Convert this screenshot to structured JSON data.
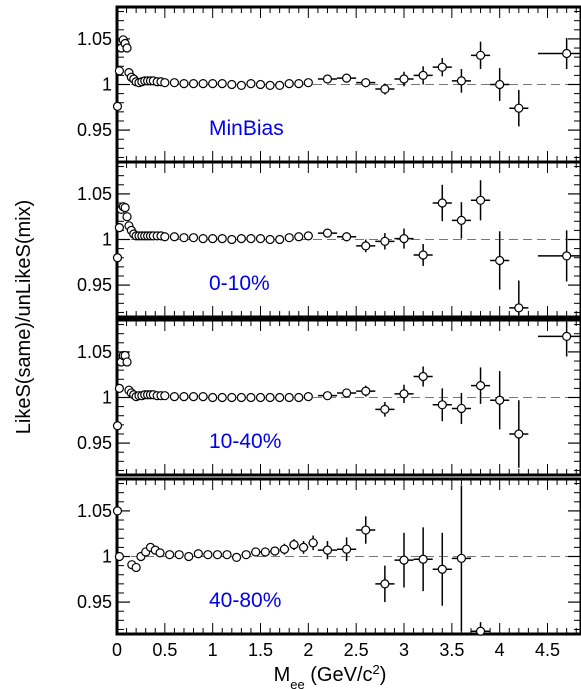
{
  "chart_data": {
    "type": "scatter",
    "ylabel": "LikeS(same)/unLikeS(mix)",
    "xlabel_main": "M",
    "xlabel_sub": "ee",
    "xlabel_unit_pre": " (GeV/c",
    "xlabel_unit_sup": "2",
    "xlabel_unit_post": ")",
    "xlim": [
      0,
      4.85
    ],
    "ylim": [
      0.915,
      1.085
    ],
    "x_ticks": [
      0,
      0.5,
      1,
      1.5,
      2,
      2.5,
      3,
      3.5,
      4,
      4.5
    ],
    "x_tick_labels": [
      "0",
      "0.5",
      "1",
      "1.5",
      "2",
      "2.5",
      "3",
      "3.5",
      "4",
      "4.5"
    ],
    "y_ticks": [
      0.95,
      1,
      1.05
    ],
    "y_tick_labels": [
      "0.95",
      "1",
      "1.05"
    ],
    "reference_line": 1,
    "marker": "open-circle",
    "panels": [
      {
        "label": "MinBias",
        "label_color": "#0000ee",
        "points": [
          {
            "x": 0.005,
            "y": 0.976
          },
          {
            "x": 0.025,
            "y": 1.015
          },
          {
            "x": 0.045,
            "y": 1.04
          },
          {
            "x": 0.065,
            "y": 1.049
          },
          {
            "x": 0.085,
            "y": 1.045
          },
          {
            "x": 0.105,
            "y": 1.04
          },
          {
            "x": 0.125,
            "y": 1.013
          },
          {
            "x": 0.15,
            "y": 1.008
          },
          {
            "x": 0.175,
            "y": 1.006
          },
          {
            "x": 0.2,
            "y": 1.003
          },
          {
            "x": 0.23,
            "y": 1.002
          },
          {
            "x": 0.26,
            "y": 1.003
          },
          {
            "x": 0.29,
            "y": 1.004
          },
          {
            "x": 0.32,
            "y": 1.004
          },
          {
            "x": 0.35,
            "y": 1.004
          },
          {
            "x": 0.38,
            "y": 1.004
          },
          {
            "x": 0.42,
            "y": 1.003
          },
          {
            "x": 0.46,
            "y": 1.003
          },
          {
            "x": 0.5,
            "y": 1.002
          },
          {
            "x": 0.6,
            "y": 1.002
          },
          {
            "x": 0.7,
            "y": 1.001
          },
          {
            "x": 0.8,
            "y": 1.001
          },
          {
            "x": 0.9,
            "y": 1.001
          },
          {
            "x": 1.0,
            "y": 1.001
          },
          {
            "x": 1.1,
            "y": 1.001
          },
          {
            "x": 1.2,
            "y": 1.0
          },
          {
            "x": 1.3,
            "y": 0.999
          },
          {
            "x": 1.4,
            "y": 1.001
          },
          {
            "x": 1.5,
            "y": 1.0
          },
          {
            "x": 1.6,
            "y": 0.999
          },
          {
            "x": 1.7,
            "y": 0.999
          },
          {
            "x": 1.8,
            "y": 1.001
          },
          {
            "x": 1.9,
            "y": 1.001
          },
          {
            "x": 2.0,
            "y": 1.002
          },
          {
            "x": 2.2,
            "y": 1.006,
            "ex": 0.1,
            "ey": 0.003
          },
          {
            "x": 2.4,
            "y": 1.007,
            "ex": 0.1,
            "ey": 0.004
          },
          {
            "x": 2.6,
            "y": 1.002,
            "ex": 0.1,
            "ey": 0.005
          },
          {
            "x": 2.8,
            "y": 0.995,
            "ex": 0.1,
            "ey": 0.006
          },
          {
            "x": 3.0,
            "y": 1.006,
            "ex": 0.1,
            "ey": 0.008
          },
          {
            "x": 3.2,
            "y": 1.01,
            "ex": 0.1,
            "ey": 0.01
          },
          {
            "x": 3.4,
            "y": 1.019,
            "ex": 0.1,
            "ey": 0.01
          },
          {
            "x": 3.6,
            "y": 1.004,
            "ex": 0.1,
            "ey": 0.013
          },
          {
            "x": 3.8,
            "y": 1.032,
            "ex": 0.1,
            "ey": 0.015
          },
          {
            "x": 4.0,
            "y": 1.0,
            "ex": 0.1,
            "ey": 0.018
          },
          {
            "x": 4.2,
            "y": 0.974,
            "ex": 0.1,
            "ey": 0.02
          },
          {
            "x": 4.7,
            "y": 1.034,
            "ex": 0.3,
            "ey": 0.017
          }
        ]
      },
      {
        "label": "0-10%",
        "label_color": "#0000ee",
        "points": [
          {
            "x": 0.005,
            "y": 0.98
          },
          {
            "x": 0.025,
            "y": 1.013
          },
          {
            "x": 0.045,
            "y": 1.033
          },
          {
            "x": 0.065,
            "y": 1.036
          },
          {
            "x": 0.085,
            "y": 1.035
          },
          {
            "x": 0.105,
            "y": 1.025
          },
          {
            "x": 0.125,
            "y": 1.015
          },
          {
            "x": 0.15,
            "y": 1.01
          },
          {
            "x": 0.175,
            "y": 1.006
          },
          {
            "x": 0.2,
            "y": 1.004
          },
          {
            "x": 0.23,
            "y": 1.004
          },
          {
            "x": 0.26,
            "y": 1.004
          },
          {
            "x": 0.29,
            "y": 1.004
          },
          {
            "x": 0.32,
            "y": 1.004
          },
          {
            "x": 0.35,
            "y": 1.004
          },
          {
            "x": 0.38,
            "y": 1.004
          },
          {
            "x": 0.42,
            "y": 1.004
          },
          {
            "x": 0.46,
            "y": 1.004
          },
          {
            "x": 0.5,
            "y": 1.003
          },
          {
            "x": 0.6,
            "y": 1.003
          },
          {
            "x": 0.7,
            "y": 1.002
          },
          {
            "x": 0.8,
            "y": 1.002
          },
          {
            "x": 0.9,
            "y": 1.001
          },
          {
            "x": 1.0,
            "y": 1.001
          },
          {
            "x": 1.1,
            "y": 1.001
          },
          {
            "x": 1.2,
            "y": 1.0
          },
          {
            "x": 1.3,
            "y": 1.001
          },
          {
            "x": 1.4,
            "y": 1.001
          },
          {
            "x": 1.5,
            "y": 1.001
          },
          {
            "x": 1.6,
            "y": 1.0
          },
          {
            "x": 1.7,
            "y": 1.0
          },
          {
            "x": 1.8,
            "y": 1.002
          },
          {
            "x": 1.9,
            "y": 1.003
          },
          {
            "x": 2.0,
            "y": 1.004
          },
          {
            "x": 2.2,
            "y": 1.007,
            "ex": 0.1,
            "ey": 0.003
          },
          {
            "x": 2.4,
            "y": 1.003,
            "ex": 0.1,
            "ey": 0.005
          },
          {
            "x": 2.6,
            "y": 0.993,
            "ex": 0.1,
            "ey": 0.007
          },
          {
            "x": 2.8,
            "y": 0.998,
            "ex": 0.1,
            "ey": 0.009
          },
          {
            "x": 3.0,
            "y": 1.001,
            "ex": 0.1,
            "ey": 0.011
          },
          {
            "x": 3.2,
            "y": 0.983,
            "ex": 0.1,
            "ey": 0.012
          },
          {
            "x": 3.4,
            "y": 1.04,
            "ex": 0.1,
            "ey": 0.02
          },
          {
            "x": 3.6,
            "y": 1.021,
            "ex": 0.1,
            "ey": 0.02
          },
          {
            "x": 3.8,
            "y": 1.043,
            "ex": 0.1,
            "ey": 0.022
          },
          {
            "x": 4.0,
            "y": 0.977,
            "ex": 0.1,
            "ey": 0.032
          },
          {
            "x": 4.2,
            "y": 0.925,
            "ex": 0.1,
            "ey": 0.03
          },
          {
            "x": 4.7,
            "y": 0.982,
            "ex": 0.3,
            "ey": 0.028
          }
        ]
      },
      {
        "label": "10-40%",
        "label_color": "#0000ee",
        "points": [
          {
            "x": 0.005,
            "y": 0.969
          },
          {
            "x": 0.025,
            "y": 1.01
          },
          {
            "x": 0.045,
            "y": 1.039
          },
          {
            "x": 0.065,
            "y": 1.046
          },
          {
            "x": 0.085,
            "y": 1.046
          },
          {
            "x": 0.105,
            "y": 1.039
          },
          {
            "x": 0.125,
            "y": 1.008
          },
          {
            "x": 0.15,
            "y": 1.005
          },
          {
            "x": 0.175,
            "y": 1.003
          },
          {
            "x": 0.2,
            "y": 1.001
          },
          {
            "x": 0.23,
            "y": 1.002
          },
          {
            "x": 0.26,
            "y": 1.002
          },
          {
            "x": 0.29,
            "y": 1.003
          },
          {
            "x": 0.32,
            "y": 1.003
          },
          {
            "x": 0.35,
            "y": 1.003
          },
          {
            "x": 0.38,
            "y": 1.003
          },
          {
            "x": 0.42,
            "y": 1.002
          },
          {
            "x": 0.46,
            "y": 1.002
          },
          {
            "x": 0.5,
            "y": 1.002
          },
          {
            "x": 0.6,
            "y": 1.001
          },
          {
            "x": 0.7,
            "y": 1.001
          },
          {
            "x": 0.8,
            "y": 1.001
          },
          {
            "x": 0.9,
            "y": 1.001
          },
          {
            "x": 1.0,
            "y": 1.0
          },
          {
            "x": 1.1,
            "y": 1.0
          },
          {
            "x": 1.2,
            "y": 1.0
          },
          {
            "x": 1.3,
            "y": 1.0
          },
          {
            "x": 1.4,
            "y": 1.0
          },
          {
            "x": 1.5,
            "y": 1.0
          },
          {
            "x": 1.6,
            "y": 1.0
          },
          {
            "x": 1.7,
            "y": 1.0
          },
          {
            "x": 1.8,
            "y": 1.0
          },
          {
            "x": 1.9,
            "y": 1.0
          },
          {
            "x": 2.0,
            "y": 1.001
          },
          {
            "x": 2.2,
            "y": 1.002,
            "ex": 0.1,
            "ey": 0.003
          },
          {
            "x": 2.4,
            "y": 1.005,
            "ex": 0.1,
            "ey": 0.004
          },
          {
            "x": 2.6,
            "y": 1.007,
            "ex": 0.1,
            "ey": 0.006
          },
          {
            "x": 2.8,
            "y": 0.987,
            "ex": 0.1,
            "ey": 0.008
          },
          {
            "x": 3.0,
            "y": 1.004,
            "ex": 0.1,
            "ey": 0.01
          },
          {
            "x": 3.2,
            "y": 1.023,
            "ex": 0.1,
            "ey": 0.011
          },
          {
            "x": 3.4,
            "y": 0.992,
            "ex": 0.1,
            "ey": 0.018
          },
          {
            "x": 3.6,
            "y": 0.988,
            "ex": 0.1,
            "ey": 0.017
          },
          {
            "x": 3.8,
            "y": 1.013,
            "ex": 0.1,
            "ey": 0.02
          },
          {
            "x": 4.0,
            "y": 0.997,
            "ex": 0.1,
            "ey": 0.032
          },
          {
            "x": 4.2,
            "y": 0.96,
            "ex": 0.1,
            "ey": 0.037
          },
          {
            "x": 4.7,
            "y": 1.067,
            "ex": 0.3,
            "ey": 0.022
          }
        ]
      },
      {
        "label": "40-80%",
        "label_color": "#0000ee",
        "points": [
          {
            "x": 0.005,
            "y": 1.05
          },
          {
            "x": 0.025,
            "y": 1.0
          },
          {
            "x": 0.155,
            "y": 0.991
          },
          {
            "x": 0.2,
            "y": 0.988
          },
          {
            "x": 0.25,
            "y": 1.0
          },
          {
            "x": 0.3,
            "y": 1.005
          },
          {
            "x": 0.35,
            "y": 1.01
          },
          {
            "x": 0.4,
            "y": 1.007
          },
          {
            "x": 0.45,
            "y": 1.004
          },
          {
            "x": 0.55,
            "y": 1.002
          },
          {
            "x": 0.65,
            "y": 1.002
          },
          {
            "x": 0.75,
            "y": 1.0
          },
          {
            "x": 0.85,
            "y": 1.003
          },
          {
            "x": 0.95,
            "y": 1.002
          },
          {
            "x": 1.05,
            "y": 1.002
          },
          {
            "x": 1.15,
            "y": 1.002
          },
          {
            "x": 1.25,
            "y": 0.999
          },
          {
            "x": 1.35,
            "y": 1.002,
            "ex": 0.05,
            "ey": 0.004
          },
          {
            "x": 1.45,
            "y": 1.005,
            "ex": 0.05,
            "ey": 0.004
          },
          {
            "x": 1.55,
            "y": 1.005,
            "ex": 0.05,
            "ey": 0.005
          },
          {
            "x": 1.65,
            "y": 1.006,
            "ex": 0.05,
            "ey": 0.005
          },
          {
            "x": 1.75,
            "y": 1.008,
            "ex": 0.05,
            "ey": 0.006
          },
          {
            "x": 1.85,
            "y": 1.013,
            "ex": 0.05,
            "ey": 0.006
          },
          {
            "x": 1.95,
            "y": 1.01,
            "ex": 0.05,
            "ey": 0.007
          },
          {
            "x": 2.05,
            "y": 1.015,
            "ex": 0.05,
            "ey": 0.008
          },
          {
            "x": 2.2,
            "y": 1.007,
            "ex": 0.1,
            "ey": 0.01
          },
          {
            "x": 2.4,
            "y": 1.008,
            "ex": 0.1,
            "ey": 0.013
          },
          {
            "x": 2.6,
            "y": 1.029,
            "ex": 0.1,
            "ey": 0.015
          },
          {
            "x": 2.8,
            "y": 0.97,
            "ex": 0.1,
            "ey": 0.02
          },
          {
            "x": 3.0,
            "y": 0.996,
            "ex": 0.1,
            "ey": 0.03
          },
          {
            "x": 3.2,
            "y": 0.997,
            "ex": 0.1,
            "ey": 0.035
          },
          {
            "x": 3.4,
            "y": 0.986,
            "ex": 0.1,
            "ey": 0.04
          },
          {
            "x": 3.6,
            "y": 0.998,
            "ex": 0.1,
            "ey": 0.08
          },
          {
            "x": 3.8,
            "y": 0.918,
            "ex": 0.1,
            "ey": 0.01
          }
        ]
      }
    ]
  }
}
